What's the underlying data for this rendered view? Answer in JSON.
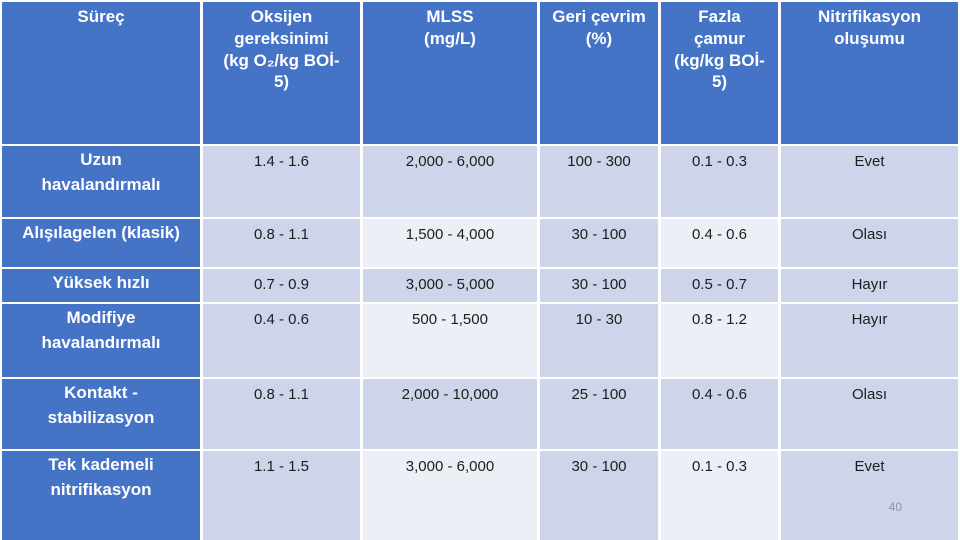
{
  "table": {
    "columns": [
      "Süreç",
      "Oksijen\ngereksinimi\n(kg O₂/kg BOİ-\n5)",
      "MLSS\n(mg/L)",
      "Geri çevrim\n(%)",
      "Fazla\nçamur\n(kg/kg BOİ-\n5)",
      "Nitrifikasyon\noluşumu"
    ],
    "rows": [
      {
        "process": "Uzun\nhavalandırmalı",
        "oxygen": "1.4 - 1.6",
        "mlss": "2,000 - 6,000",
        "recycle": "100 - 300",
        "sludge": "0.1 - 0.3",
        "nitrification": "Evet"
      },
      {
        "process": "Alışılagelen (klasik)",
        "oxygen": "0.8 - 1.1",
        "mlss": "1,500 - 4,000",
        "recycle": "30 - 100",
        "sludge": "0.4 - 0.6",
        "nitrification": "Olası"
      },
      {
        "process": "Yüksek hızlı",
        "oxygen": "0.7 - 0.9",
        "mlss": "3,000 - 5,000",
        "recycle": "30 - 100",
        "sludge": "0.5 - 0.7",
        "nitrification": "Hayır"
      },
      {
        "process": "Modifiye\nhavalandırmalı",
        "oxygen": "0.4 - 0.6",
        "mlss": "500 - 1,500",
        "recycle": "10 - 30",
        "sludge": "0.8 - 1.2",
        "nitrification": "Hayır"
      },
      {
        "process": "Kontakt -\nstabilizasyon",
        "oxygen": "0.8 - 1.1",
        "mlss": "2,000 - 10,000",
        "recycle": "25 - 100",
        "sludge": "0.4 - 0.6",
        "nitrification": "Olası"
      },
      {
        "process": "Tek kademeli\nnitrifikasyon",
        "oxygen": "1.1 - 1.5",
        "mlss": "3,000 - 6,000",
        "recycle": "30 - 100",
        "sludge": "0.1 - 0.3",
        "nitrification": "Evet"
      }
    ]
  },
  "page_number": "40",
  "colors": {
    "header_blue": "#4573C6",
    "band_dark": "#CED4E9",
    "band_light": "#EDEFF7",
    "border_white": "#FFFFFF"
  }
}
